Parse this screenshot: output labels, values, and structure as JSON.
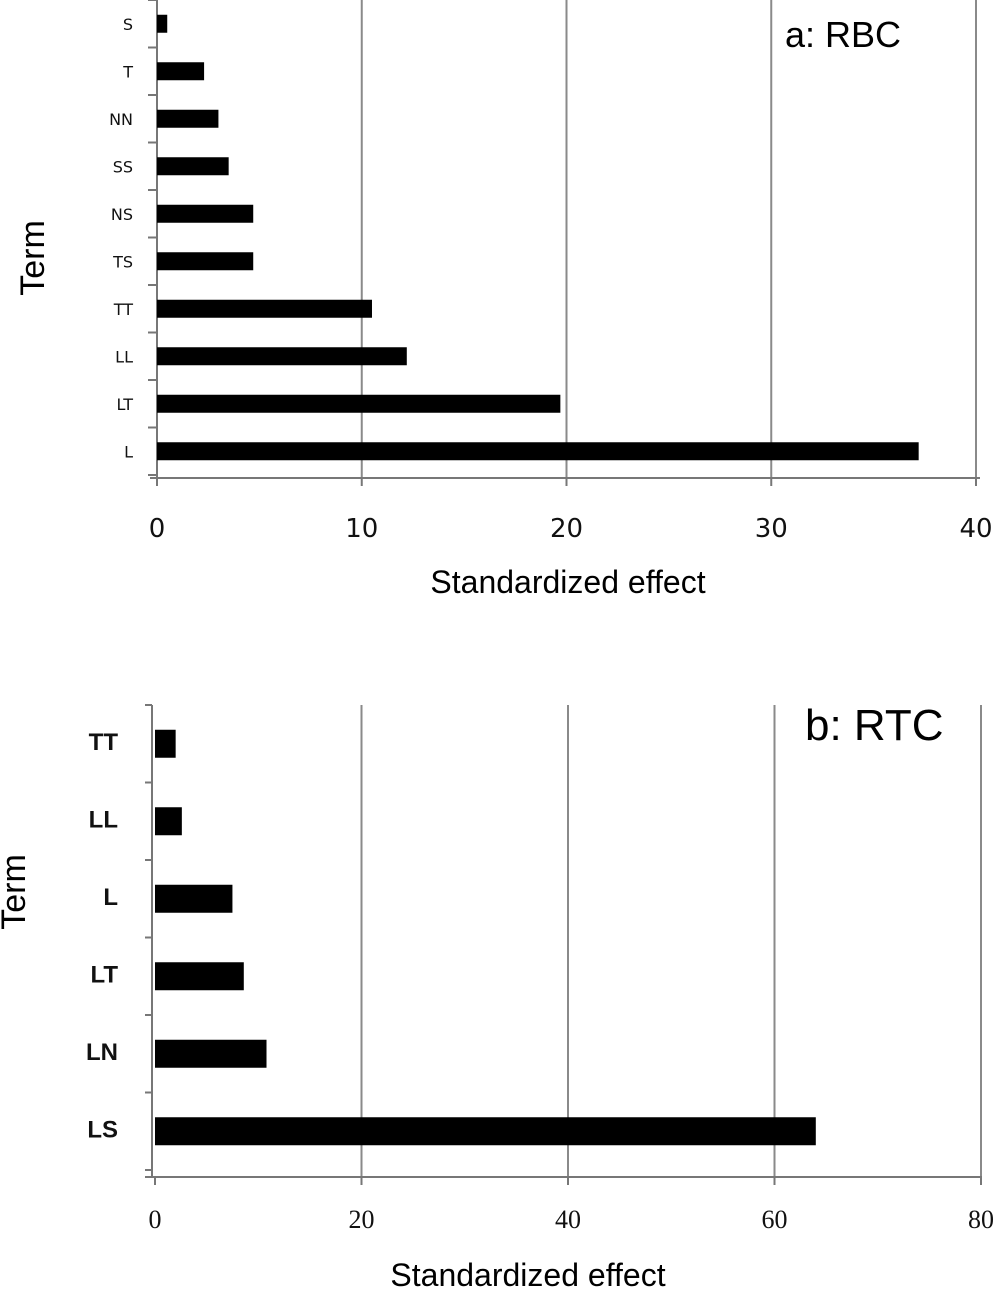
{
  "chart_data": [
    {
      "type": "bar",
      "orientation": "horizontal",
      "title": "a: RBC",
      "xlabel": "Standardized effect",
      "ylabel": "Term",
      "categories": [
        "S",
        "T",
        "NN",
        "SS",
        "NS",
        "TS",
        "TT",
        "LL",
        "LT",
        "L"
      ],
      "values": [
        0.5,
        2.3,
        3.0,
        3.5,
        4.7,
        4.7,
        10.5,
        12.2,
        19.7,
        37.2
      ],
      "xlim": [
        0,
        40
      ],
      "xticks": [
        "0",
        "10",
        "20",
        "30",
        "40"
      ],
      "grid": "vertical",
      "bar_color": "#000000"
    },
    {
      "type": "bar",
      "orientation": "horizontal",
      "title": "b: RTC",
      "xlabel": "Standardized effect",
      "ylabel": "Term",
      "categories": [
        "TT",
        "LL",
        "L",
        "LT",
        "LN",
        "LS"
      ],
      "values": [
        2.0,
        2.6,
        7.5,
        8.6,
        10.8,
        64.0
      ],
      "xlim": [
        0,
        80
      ],
      "xticks": [
        "0",
        "20",
        "40",
        "60",
        "80"
      ],
      "grid": "vertical",
      "bar_color": "#000000"
    }
  ]
}
